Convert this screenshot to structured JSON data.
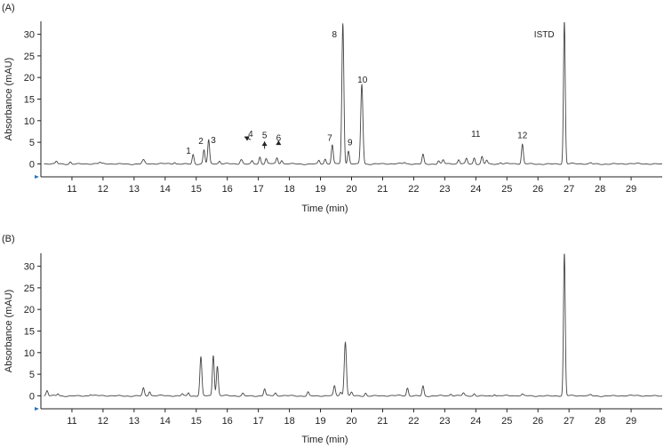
{
  "chart_data": [
    {
      "type": "line",
      "panel_label": "(A)",
      "xlabel": "Time (min)",
      "ylabel": "Absorbance (mAU)",
      "xlim": [
        10,
        30
      ],
      "ylim": [
        -3,
        33
      ],
      "xticks": [
        11,
        12,
        13,
        14,
        15,
        16,
        17,
        18,
        19,
        20,
        21,
        22,
        23,
        24,
        25,
        26,
        27,
        28,
        29
      ],
      "yticks": [
        0,
        5,
        10,
        15,
        20,
        25,
        30
      ],
      "grid": false,
      "peaks": [
        {
          "t": 10.5,
          "h": 0.6,
          "w": 0.03
        },
        {
          "t": 10.95,
          "h": 0.5,
          "w": 0.03
        },
        {
          "t": 11.9,
          "h": 0.3,
          "w": 0.03
        },
        {
          "t": 13.3,
          "h": 0.9,
          "w": 0.04
        },
        {
          "t": 14.3,
          "h": 0.4,
          "w": 0.03
        },
        {
          "t": 14.9,
          "h": 2.2,
          "w": 0.03
        },
        {
          "t": 15.25,
          "h": 3.2,
          "w": 0.03
        },
        {
          "t": 15.4,
          "h": 5.5,
          "w": 0.03
        },
        {
          "t": 15.75,
          "h": 0.6,
          "w": 0.03
        },
        {
          "t": 16.45,
          "h": 1.1,
          "w": 0.04
        },
        {
          "t": 16.8,
          "h": 0.7,
          "w": 0.03
        },
        {
          "t": 17.05,
          "h": 1.6,
          "w": 0.03
        },
        {
          "t": 17.25,
          "h": 1.2,
          "w": 0.03
        },
        {
          "t": 17.6,
          "h": 1.3,
          "w": 0.03
        },
        {
          "t": 17.75,
          "h": 0.8,
          "w": 0.03
        },
        {
          "t": 18.95,
          "h": 0.8,
          "w": 0.03
        },
        {
          "t": 19.15,
          "h": 1.1,
          "w": 0.03
        },
        {
          "t": 19.38,
          "h": 4.3,
          "w": 0.03
        },
        {
          "t": 19.72,
          "h": 32.5,
          "w": 0.032
        },
        {
          "t": 19.9,
          "h": 3.0,
          "w": 0.03
        },
        {
          "t": 20.33,
          "h": 18.5,
          "w": 0.035
        },
        {
          "t": 21.7,
          "h": 0.3,
          "w": 0.03
        },
        {
          "t": 22.3,
          "h": 2.2,
          "w": 0.03
        },
        {
          "t": 22.8,
          "h": 0.7,
          "w": 0.03
        },
        {
          "t": 22.95,
          "h": 0.9,
          "w": 0.03
        },
        {
          "t": 23.45,
          "h": 0.9,
          "w": 0.03
        },
        {
          "t": 23.7,
          "h": 1.2,
          "w": 0.03
        },
        {
          "t": 23.95,
          "h": 1.4,
          "w": 0.03
        },
        {
          "t": 24.2,
          "h": 1.7,
          "w": 0.03
        },
        {
          "t": 24.35,
          "h": 0.9,
          "w": 0.03
        },
        {
          "t": 24.8,
          "h": 0.3,
          "w": 0.03
        },
        {
          "t": 25.5,
          "h": 4.5,
          "w": 0.03
        },
        {
          "t": 26.85,
          "h": 33,
          "w": 0.028
        },
        {
          "t": 27.7,
          "h": 0.25,
          "w": 0.03
        }
      ],
      "annotations": [
        {
          "text": "1",
          "x": 14.75,
          "y": 2.3
        },
        {
          "text": "2",
          "x": 15.15,
          "y": 4.6
        },
        {
          "text": "3",
          "x": 15.55,
          "y": 4.8
        },
        {
          "text": "4",
          "x": 16.75,
          "y": 6.3
        },
        {
          "text": "5",
          "x": 17.2,
          "y": 6.0
        },
        {
          "text": "6",
          "x": 17.65,
          "y": 5.3
        },
        {
          "text": "7",
          "x": 19.3,
          "y": 5.3
        },
        {
          "text": "8",
          "x": 19.45,
          "y": 29.3
        },
        {
          "text": "9",
          "x": 19.95,
          "y": 4.3
        },
        {
          "text": "10",
          "x": 20.35,
          "y": 18.8
        },
        {
          "text": "11",
          "x": 24.0,
          "y": 6.3
        },
        {
          "text": "12",
          "x": 25.5,
          "y": 6.0
        },
        {
          "text": "ISTD",
          "x": 26.2,
          "y": 29.3
        }
      ],
      "arrows": [
        {
          "from": [
            16.75,
            5.6
          ],
          "to": [
            16.55,
            6.3
          ]
        },
        {
          "from": [
            17.2,
            3.5
          ],
          "to": [
            17.2,
            5.2
          ]
        },
        {
          "from": [
            17.65,
            4.6
          ],
          "to": [
            17.65,
            5.4
          ]
        }
      ]
    },
    {
      "type": "line",
      "panel_label": "(B)",
      "xlabel": "Time (min)",
      "ylabel": "Absorbance (mAU)",
      "xlim": [
        10,
        30
      ],
      "ylim": [
        -3,
        33
      ],
      "xticks": [
        11,
        12,
        13,
        14,
        15,
        16,
        17,
        18,
        19,
        20,
        21,
        22,
        23,
        24,
        25,
        26,
        27,
        28,
        29
      ],
      "yticks": [
        0,
        5,
        10,
        15,
        20,
        25,
        30
      ],
      "grid": false,
      "peaks": [
        {
          "t": 10.2,
          "h": 1.2,
          "w": 0.03
        },
        {
          "t": 10.55,
          "h": 0.5,
          "w": 0.03
        },
        {
          "t": 11.6,
          "h": 0.3,
          "w": 0.03
        },
        {
          "t": 13.3,
          "h": 1.8,
          "w": 0.03
        },
        {
          "t": 13.5,
          "h": 1.0,
          "w": 0.03
        },
        {
          "t": 14.55,
          "h": 0.5,
          "w": 0.03
        },
        {
          "t": 14.75,
          "h": 0.8,
          "w": 0.03
        },
        {
          "t": 15.15,
          "h": 9.0,
          "w": 0.032
        },
        {
          "t": 15.55,
          "h": 9.4,
          "w": 0.03
        },
        {
          "t": 15.68,
          "h": 6.8,
          "w": 0.03
        },
        {
          "t": 16.5,
          "h": 0.6,
          "w": 0.03
        },
        {
          "t": 17.2,
          "h": 1.6,
          "w": 0.03
        },
        {
          "t": 17.55,
          "h": 0.6,
          "w": 0.03
        },
        {
          "t": 18.6,
          "h": 0.9,
          "w": 0.03
        },
        {
          "t": 19.45,
          "h": 2.2,
          "w": 0.03
        },
        {
          "t": 19.65,
          "h": 0.8,
          "w": 0.03
        },
        {
          "t": 19.8,
          "h": 12.5,
          "w": 0.035
        },
        {
          "t": 20.0,
          "h": 0.8,
          "w": 0.03
        },
        {
          "t": 20.45,
          "h": 0.7,
          "w": 0.03
        },
        {
          "t": 21.8,
          "h": 1.8,
          "w": 0.03
        },
        {
          "t": 22.3,
          "h": 2.3,
          "w": 0.03
        },
        {
          "t": 23.2,
          "h": 0.4,
          "w": 0.03
        },
        {
          "t": 23.6,
          "h": 0.6,
          "w": 0.03
        },
        {
          "t": 23.95,
          "h": 0.5,
          "w": 0.03
        },
        {
          "t": 24.6,
          "h": 0.4,
          "w": 0.03
        },
        {
          "t": 25.5,
          "h": 0.3,
          "w": 0.03
        },
        {
          "t": 26.85,
          "h": 33,
          "w": 0.028
        },
        {
          "t": 27.7,
          "h": 0.25,
          "w": 0.03
        }
      ],
      "annotations": [],
      "arrows": []
    }
  ]
}
